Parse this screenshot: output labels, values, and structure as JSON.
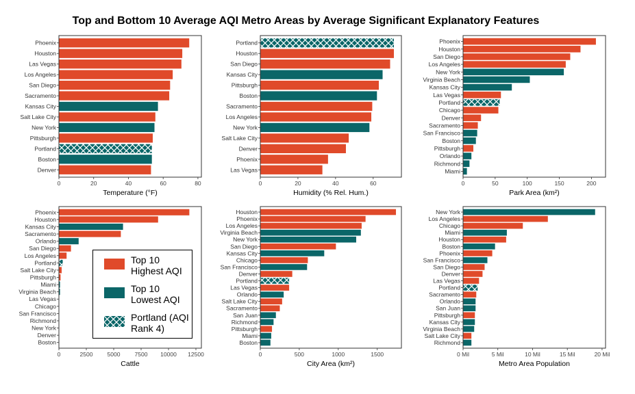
{
  "title": "Top and Bottom 10 Average AQI Metro Areas by Average Significant Explanatory Features",
  "colors": {
    "highest": "#E04A2A",
    "lowest": "#0B6668",
    "hatch": "#ffffff"
  },
  "legend": {
    "items": [
      {
        "key": "highest",
        "label": "Top 10\nHighest AQI"
      },
      {
        "key": "lowest",
        "label": "Top 10\nLowest AQI"
      },
      {
        "key": "portland",
        "label": "Portland (AQI\nRank 4)"
      }
    ]
  },
  "chart_data": [
    {
      "type": "bar",
      "orientation": "horizontal",
      "xlabel": "Temperature (°F)",
      "xlim": [
        0,
        82
      ],
      "xticks": [
        0,
        20,
        40,
        60,
        80
      ],
      "tick_labels": [
        "0",
        "20",
        "40",
        "60",
        "80"
      ],
      "categories": [
        "Phoenix",
        "Houston",
        "Las Vegas",
        "Los Angeles",
        "San Diego",
        "Sacramento",
        "Kansas City",
        "Salt Lake City",
        "New York",
        "Pittsburgh",
        "Portland",
        "Boston",
        "Denver"
      ],
      "values": [
        75,
        71,
        70.5,
        65.5,
        64,
        63.5,
        57,
        55.5,
        55,
        54,
        53.5,
        53.5,
        53
      ],
      "groups": [
        "highest",
        "highest",
        "highest",
        "highest",
        "highest",
        "highest",
        "lowest",
        "highest",
        "lowest",
        "highest",
        "portland",
        "lowest",
        "highest"
      ]
    },
    {
      "type": "bar",
      "orientation": "horizontal",
      "xlabel": "Humidity (% Rel. Hum.)",
      "xlim": [
        0,
        75
      ],
      "xticks": [
        0,
        20,
        40,
        60
      ],
      "tick_labels": [
        "0",
        "20",
        "40",
        "60"
      ],
      "categories": [
        "Portland",
        "Houston",
        "San Diego",
        "Kansas City",
        "Pittsburgh",
        "Boston",
        "Sacramento",
        "Los Angeles",
        "New York",
        "Salt Lake City",
        "Denver",
        "Phoenix",
        "Las Vegas"
      ],
      "values": [
        71,
        71,
        69,
        65,
        63,
        62,
        59.5,
        59,
        58,
        47,
        45.5,
        36,
        33
      ],
      "groups": [
        "portland",
        "highest",
        "highest",
        "lowest",
        "highest",
        "lowest",
        "highest",
        "highest",
        "lowest",
        "highest",
        "highest",
        "highest",
        "highest"
      ]
    },
    {
      "type": "bar",
      "orientation": "horizontal",
      "xlabel": "Park Area  (km²)",
      "xlim": [
        0,
        222
      ],
      "xticks": [
        0,
        50,
        100,
        150,
        200
      ],
      "tick_labels": [
        "0",
        "50",
        "100",
        "150",
        "200"
      ],
      "categories": [
        "Phoenix",
        "Houston",
        "San Diego",
        "Los Angeles",
        "New York",
        "Virginia Beach",
        "Kansas City",
        "Las Vegas",
        "Portland",
        "Chicago",
        "Denver",
        "Sacramento",
        "San Francisco",
        "Boston",
        "Pittsburgh",
        "Orlando",
        "Richmond",
        "Miami"
      ],
      "values": [
        207,
        183,
        167,
        160,
        157,
        104,
        76,
        59,
        57,
        55,
        28,
        23,
        22,
        20,
        16,
        13,
        10,
        6
      ],
      "groups": [
        "highest",
        "highest",
        "highest",
        "highest",
        "lowest",
        "lowest",
        "lowest",
        "highest",
        "portland",
        "highest",
        "highest",
        "highest",
        "lowest",
        "lowest",
        "highest",
        "lowest",
        "lowest",
        "lowest"
      ]
    },
    {
      "type": "bar",
      "orientation": "horizontal",
      "xlabel": "Cattle",
      "xlim": [
        0,
        13000
      ],
      "xticks": [
        0,
        2500,
        5000,
        7500,
        10000,
        12500
      ],
      "tick_labels": [
        "0",
        "2500",
        "5000",
        "7500",
        "10000",
        "12500"
      ],
      "categories": [
        "Phoenix",
        "Houston",
        "Kansas City",
        "Sacramento",
        "Orlando",
        "San Diego",
        "Los Angeles",
        "Portland",
        "Salt Lake City",
        "Pittsburgh",
        "Miami",
        "Virginia Beach",
        "Las Vegas",
        "Chicago",
        "San Francisco",
        "Richmond",
        "New York",
        "Denver",
        "Boston"
      ],
      "values": [
        11900,
        9050,
        5850,
        5650,
        1800,
        1100,
        700,
        350,
        250,
        150,
        100,
        100,
        0,
        0,
        0,
        0,
        0,
        0,
        0
      ],
      "groups": [
        "highest",
        "highest",
        "lowest",
        "highest",
        "lowest",
        "highest",
        "highest",
        "portland",
        "highest",
        "highest",
        "lowest",
        "lowest",
        "highest",
        "highest",
        "lowest",
        "lowest",
        "lowest",
        "highest",
        "lowest"
      ]
    },
    {
      "type": "bar",
      "orientation": "horizontal",
      "xlabel": "City Area  (km²)",
      "xlim": [
        0,
        1810
      ],
      "xticks": [
        0,
        500,
        1000,
        1500
      ],
      "tick_labels": [
        "0",
        "500",
        "1000",
        "1500"
      ],
      "categories": [
        "Houston",
        "Phoenix",
        "Los Angeles",
        "Virginia Beach",
        "New York",
        "San Diego",
        "Kansas City",
        "Chicago",
        "San Francisco",
        "Denver",
        "Portland",
        "Las Vegas",
        "Orlando",
        "Salt Lake City",
        "Sacramento",
        "San Juan",
        "Richmond",
        "Pittsburgh",
        "Miami",
        "Boston"
      ],
      "values": [
        1740,
        1350,
        1300,
        1290,
        1230,
        970,
        820,
        610,
        600,
        410,
        370,
        370,
        300,
        280,
        250,
        200,
        170,
        150,
        140,
        130
      ],
      "groups": [
        "highest",
        "highest",
        "highest",
        "lowest",
        "lowest",
        "highest",
        "lowest",
        "highest",
        "lowest",
        "highest",
        "portland",
        "highest",
        "lowest",
        "highest",
        "highest",
        "lowest",
        "lowest",
        "highest",
        "lowest",
        "lowest"
      ]
    },
    {
      "type": "bar",
      "orientation": "horizontal",
      "xlabel": "Metro Area Population",
      "xlim": [
        0,
        20500000
      ],
      "xticks": [
        0,
        5000000,
        10000000,
        15000000,
        20000000
      ],
      "tick_labels": [
        "0 Mil",
        "5 Mil",
        "10 Mil",
        "15 Mil",
        "20 Mil"
      ],
      "categories": [
        "New York",
        "Los Angeles",
        "Chicago",
        "Miami",
        "Houston",
        "Boston",
        "Phoenix",
        "San Francisco",
        "San Diego",
        "Denver",
        "Las Vegas",
        "Portland",
        "Sacramento",
        "Orlando",
        "San Juan",
        "Pittsburgh",
        "Kansas City",
        "Virginia Beach",
        "Salt Lake City",
        "Richmond"
      ],
      "values": [
        19000000,
        12200000,
        8600000,
        6300000,
        6200000,
        4600000,
        4200000,
        3500000,
        3100000,
        2800000,
        2300000,
        2100000,
        1900000,
        1800000,
        1800000,
        1700000,
        1700000,
        1600000,
        1200000,
        1200000
      ],
      "groups": [
        "lowest",
        "highest",
        "highest",
        "lowest",
        "highest",
        "lowest",
        "highest",
        "lowest",
        "highest",
        "highest",
        "highest",
        "portland",
        "highest",
        "lowest",
        "lowest",
        "highest",
        "lowest",
        "lowest",
        "highest",
        "lowest"
      ]
    }
  ]
}
